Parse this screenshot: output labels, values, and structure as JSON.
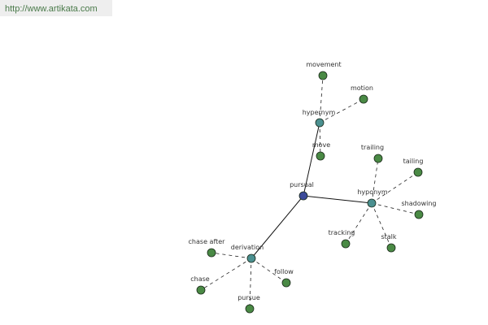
{
  "url": "http://www.artikata.com",
  "nodes": [
    {
      "label": "pursual"
    },
    {
      "label": "hypernym"
    },
    {
      "label": "movement"
    },
    {
      "label": "motion"
    },
    {
      "label": "move"
    },
    {
      "label": "hyponym"
    },
    {
      "label": "trailing"
    },
    {
      "label": "tailing"
    },
    {
      "label": "shadowing"
    },
    {
      "label": "stalk"
    },
    {
      "label": "tracking"
    },
    {
      "label": "derivation"
    },
    {
      "label": "chase after"
    },
    {
      "label": "chase"
    },
    {
      "label": "pursue"
    },
    {
      "label": "follow"
    }
  ]
}
